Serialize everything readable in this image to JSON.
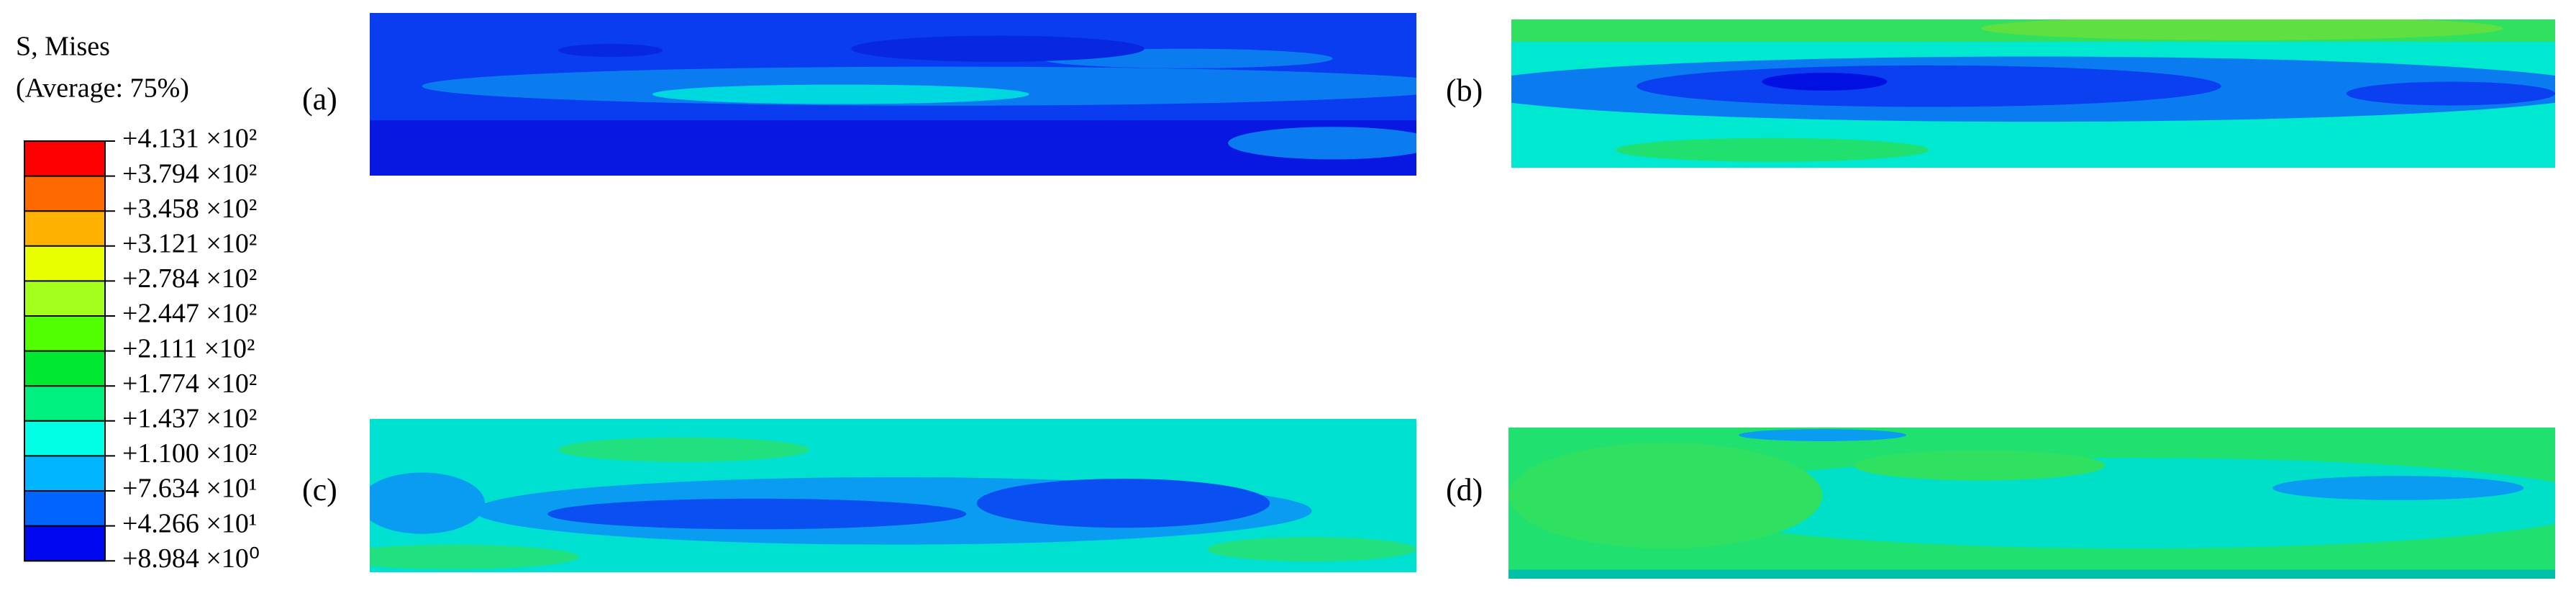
{
  "legend": {
    "title": "S, Mises",
    "subtitle": "(Average: 75%)",
    "labels": [
      "+4.131 ×10²",
      "+3.794 ×10²",
      "+3.458 ×10²",
      "+3.121 ×10²",
      "+2.784 ×10²",
      "+2.447 ×10²",
      "+2.111 ×10²",
      "+1.774 ×10²",
      "+1.437 ×10²",
      "+1.100 ×10²",
      "+7.634 ×10¹",
      "+4.266 ×10¹",
      "+8.984 ×10⁰"
    ],
    "colors": [
      "#ff0000",
      "#ff6a00",
      "#ffb000",
      "#e8ff00",
      "#a4ff1c",
      "#52ff00",
      "#00e830",
      "#00f080",
      "#00ffe4",
      "#00b4ff",
      "#0064ff",
      "#0008f0"
    ]
  },
  "panels": [
    {
      "label": "(a)"
    },
    {
      "label": "(b)"
    },
    {
      "label": "(c)"
    },
    {
      "label": "(d)"
    }
  ]
}
